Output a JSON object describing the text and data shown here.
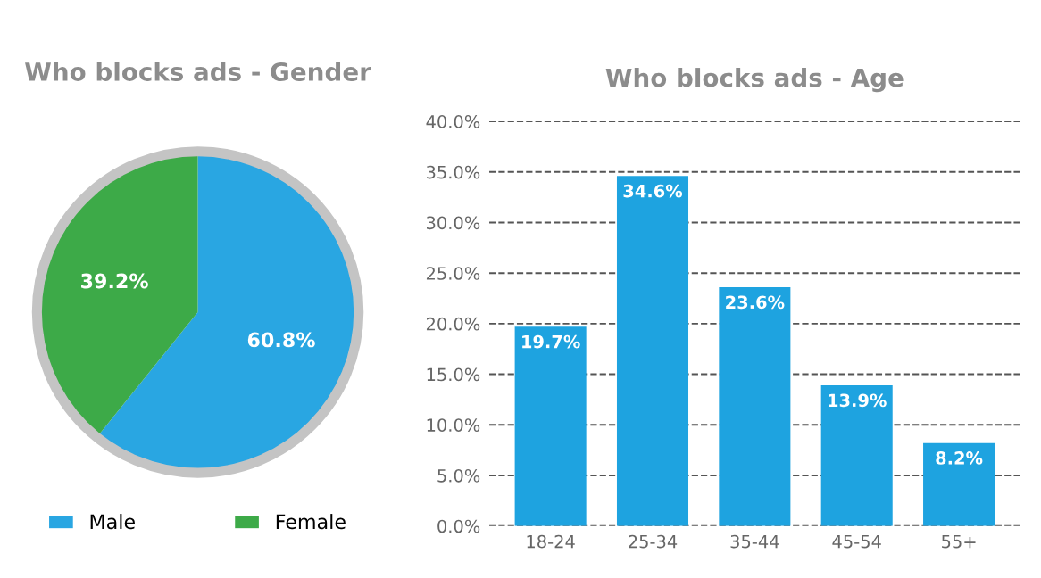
{
  "chart_data": [
    {
      "type": "pie",
      "title": "Who blocks ads - Gender",
      "categories": [
        "Male",
        "Female"
      ],
      "values": [
        60.8,
        39.2
      ],
      "colors": [
        "#29a6e2",
        "#3daa48"
      ],
      "value_labels": [
        "60.8%",
        "39.2%"
      ],
      "legend": "bottom"
    },
    {
      "type": "bar",
      "title": "Who blocks ads - Age",
      "categories": [
        "18-24",
        "25-34",
        "35-44",
        "45-54",
        "55+"
      ],
      "values": [
        19.7,
        34.6,
        23.6,
        13.9,
        8.2
      ],
      "color": "#1ea3e0",
      "value_labels": [
        "19.7%",
        "34.6%",
        "23.6%",
        "13.9%",
        "8.2%"
      ],
      "ylim": [
        0,
        40
      ],
      "yticks": [
        {
          "value": 0,
          "label": "0.0%"
        },
        {
          "value": 5,
          "label": "5.0%"
        },
        {
          "value": 10,
          "label": "10.0%"
        },
        {
          "value": 15,
          "label": "15.0%"
        },
        {
          "value": 20,
          "label": "20.0%"
        },
        {
          "value": 25,
          "label": "25.0%"
        },
        {
          "value": 30,
          "label": "30.0%"
        },
        {
          "value": 35,
          "label": "35.0%"
        },
        {
          "value": 40,
          "label": "40.0%"
        }
      ],
      "grid": "y"
    }
  ]
}
